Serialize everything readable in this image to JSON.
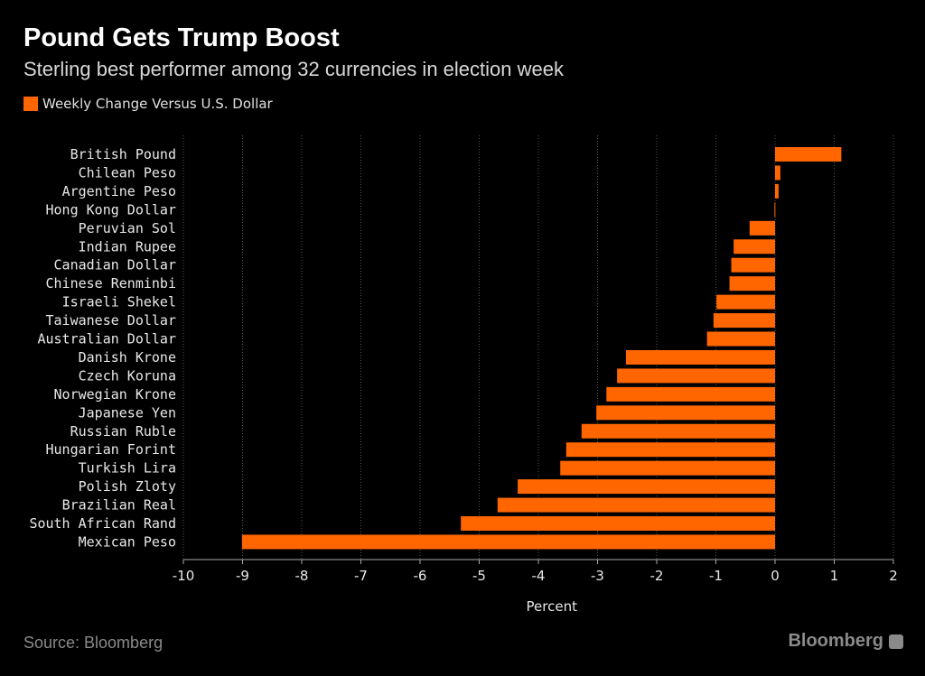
{
  "chart_data": {
    "type": "bar",
    "orientation": "horizontal",
    "title": "Pound Gets Trump Boost",
    "subtitle": "Sterling best performer among 32 currencies in election week",
    "xlabel": "Percent",
    "ylabel": "",
    "xlim": [
      -10,
      2
    ],
    "xticks": [
      -10,
      -9,
      -8,
      -7,
      -6,
      -5,
      -4,
      -3,
      -2,
      -1,
      0,
      1,
      2
    ],
    "grid": true,
    "legend_position": "top-left",
    "categories": [
      "British Pound",
      "Chilean Peso",
      "Argentine Peso",
      "Hong Kong Dollar",
      "Peruvian Sol",
      "Indian Rupee",
      "Canadian Dollar",
      "Chinese Renminbi",
      "Israeli Shekel",
      "Taiwanese Dollar",
      "Australian Dollar",
      "Danish Krone",
      "Czech Koruna",
      "Norwegian Krone",
      "Japanese Yen",
      "Russian Ruble",
      "Hungarian Forint",
      "Turkish Lira",
      "Polish Zloty",
      "Brazilian Real",
      "South African Rand",
      "Mexican Peso"
    ],
    "series": [
      {
        "name": "Weekly Change Versus U.S. Dollar",
        "color": "#ff6600",
        "values": [
          1.12,
          0.09,
          0.06,
          -0.01,
          -0.43,
          -0.7,
          -0.74,
          -0.77,
          -0.99,
          -1.04,
          -1.15,
          -2.52,
          -2.67,
          -2.85,
          -3.02,
          -3.27,
          -3.53,
          -3.63,
          -4.35,
          -4.69,
          -5.31,
          -9.01
        ]
      }
    ]
  },
  "footer": {
    "source": "Source: Bloomberg",
    "brand": "Bloomberg"
  },
  "colors": {
    "background": "#000000",
    "bar": "#ff6600"
  }
}
